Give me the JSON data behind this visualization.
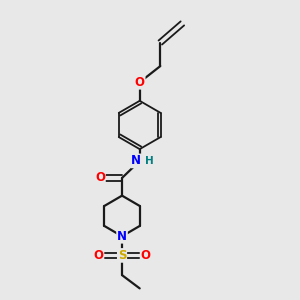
{
  "background_color": "#e8e8e8",
  "bond_color": "#1a1a1a",
  "atom_colors": {
    "O": "#ff0000",
    "N": "#0000ff",
    "S": "#ccaa00",
    "H": "#008080",
    "C": "#1a1a1a"
  }
}
